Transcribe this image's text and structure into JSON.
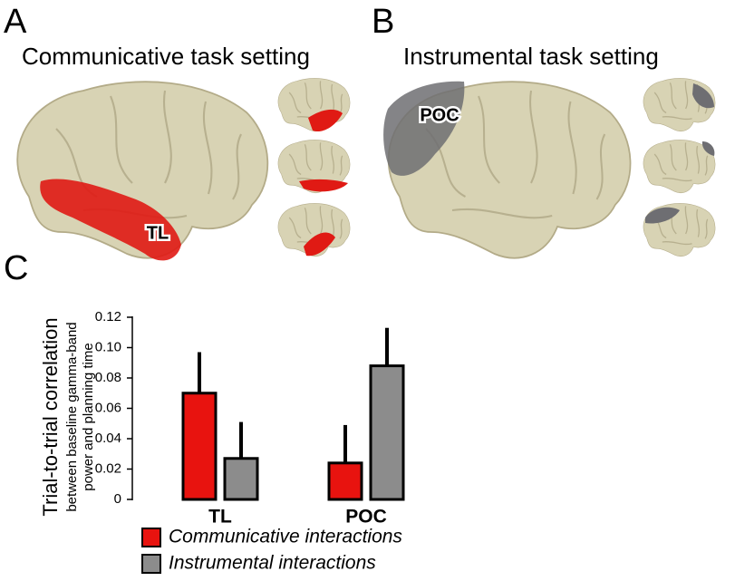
{
  "panels": {
    "a": {
      "label": "A",
      "title": "Communicative task setting",
      "region": "TL"
    },
    "b": {
      "label": "B",
      "title": "Instrumental task setting",
      "region": "POC"
    },
    "c": {
      "label": "C"
    }
  },
  "chart_data": {
    "type": "bar",
    "ylabel": "Trial-to-trial correlation",
    "ylabel_sub": [
      "between baseline gamma-band",
      "power and planning time"
    ],
    "categories": [
      "TL",
      "POC"
    ],
    "series": [
      {
        "name": "Communicative interactions",
        "color": "#e8130f",
        "values": [
          0.07,
          0.024
        ],
        "errors": [
          0.027,
          0.025
        ]
      },
      {
        "name": "Instrumental interactions",
        "color": "#8c8c8c",
        "values": [
          0.027,
          0.088
        ],
        "errors": [
          0.024,
          0.025
        ]
      }
    ],
    "ylim": [
      0,
      0.12
    ],
    "yticks": [
      0,
      0.02,
      0.04,
      0.06,
      0.08,
      {
        "value": 0.1,
        "label": "0.10"
      },
      0.12
    ]
  }
}
